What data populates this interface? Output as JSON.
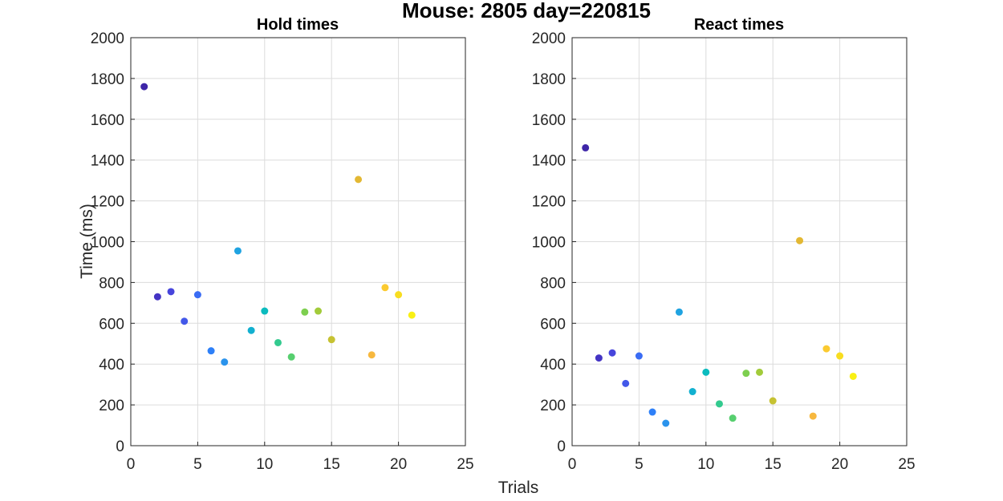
{
  "figure": {
    "title": "Mouse: 2805 day=220815",
    "xlabel": "Trials",
    "ylabel": "Time (ms)"
  },
  "chart_data": [
    {
      "type": "scatter",
      "title": "Hold times",
      "xlabel": "Trials",
      "ylabel": "Time (ms)",
      "xlim": [
        0,
        25
      ],
      "ylim": [
        0,
        2000
      ],
      "xticks": [
        0,
        5,
        10,
        15,
        20,
        25
      ],
      "yticks": [
        0,
        200,
        400,
        600,
        800,
        1000,
        1200,
        1400,
        1600,
        1800,
        2000
      ],
      "grid": true,
      "colormap": "parula",
      "x": [
        1,
        2,
        3,
        4,
        5,
        6,
        7,
        8,
        9,
        10,
        11,
        12,
        13,
        14,
        15,
        17,
        18,
        19,
        20,
        21
      ],
      "y": [
        1760,
        730,
        755,
        610,
        740,
        465,
        410,
        955,
        565,
        660,
        505,
        435,
        655,
        660,
        520,
        1305,
        445,
        775,
        740,
        640
      ]
    },
    {
      "type": "scatter",
      "title": "React times",
      "xlabel": "",
      "ylabel": "",
      "xlim": [
        0,
        25
      ],
      "ylim": [
        0,
        2000
      ],
      "xticks": [
        0,
        5,
        10,
        15,
        20,
        25
      ],
      "yticks": [
        0,
        200,
        400,
        600,
        800,
        1000,
        1200,
        1400,
        1600,
        1800,
        2000
      ],
      "grid": true,
      "colormap": "parula",
      "x": [
        1,
        2,
        3,
        4,
        5,
        6,
        7,
        8,
        9,
        10,
        11,
        12,
        13,
        14,
        15,
        17,
        18,
        19,
        20,
        21
      ],
      "y": [
        1460,
        430,
        455,
        305,
        440,
        165,
        110,
        655,
        265,
        360,
        205,
        135,
        355,
        360,
        220,
        1005,
        145,
        475,
        440,
        340
      ]
    }
  ]
}
